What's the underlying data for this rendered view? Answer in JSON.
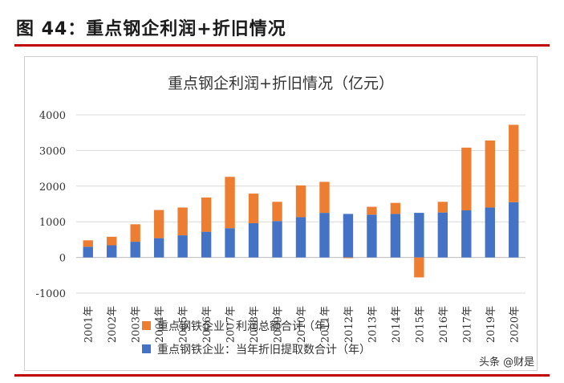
{
  "figure_title": "图 44：重点钢企利润+折旧情况",
  "watermark": "头条 @财是",
  "chart_data": {
    "type": "bar",
    "stacked": true,
    "title": "重点钢企利润+折旧情况（亿元）",
    "xlabel": "",
    "ylabel": "",
    "categories": [
      "2001年",
      "2002年",
      "2003年",
      "2004年",
      "2005年",
      "2006年",
      "2007年",
      "2008年",
      "2009年",
      "2010年",
      "2011年",
      "2012年",
      "2013年",
      "2014年",
      "2015年",
      "2016年",
      "2017年",
      "2019年",
      "2020年"
    ],
    "series": [
      {
        "name": "重点钢铁企业：当年折旧提取数合计（年）",
        "color": "#4472c4",
        "values": [
          300,
          340,
          440,
          540,
          620,
          720,
          820,
          960,
          1020,
          1130,
          1250,
          1220,
          1200,
          1220,
          1250,
          1260,
          1320,
          1400,
          1550
        ]
      },
      {
        "name": "重点钢铁企业：利润总额合计（年）",
        "color": "#ed7d31",
        "values": [
          180,
          240,
          490,
          790,
          780,
          960,
          1440,
          830,
          540,
          890,
          870,
          -20,
          220,
          310,
          -560,
          300,
          1760,
          1880,
          2170
        ]
      }
    ],
    "yticks": [
      4000,
      3000,
      2000,
      1000,
      0,
      -1000
    ],
    "ylim": [
      -1000,
      4000
    ],
    "grid": "horizontal",
    "legend_position": "bottom"
  }
}
